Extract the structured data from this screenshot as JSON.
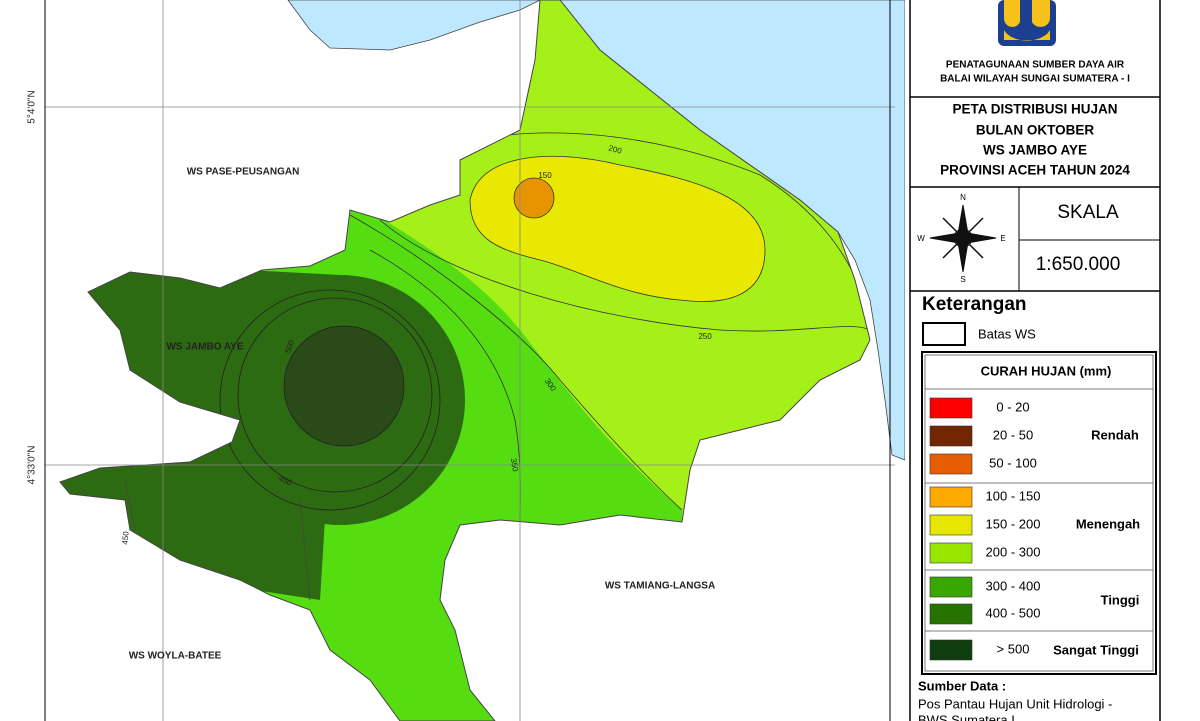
{
  "map": {
    "regions": [
      "WS PASE-PEUSANGAN",
      "WS JAMBO AYE",
      "WS TAMIANG-LANGSA",
      "WS WOYLA-BATEE"
    ],
    "contour_labels": [
      "150",
      "200",
      "250",
      "300",
      "350",
      "500",
      "450",
      "450"
    ],
    "coordinates": [
      "5°4'0\"N",
      "4°33'0\"N"
    ]
  },
  "panel": {
    "organization": [
      "PENATAGUNAAN SUMBER DAYA AIR",
      "BALAI WILAYAH SUNGAI SUMATERA - I"
    ],
    "title": [
      "PETA DISTRIBUSI HUJAN",
      "BULAN OKTOBER",
      "WS JAMBO AYE",
      "PROVINSI ACEH TAHUN 2024"
    ],
    "compass": [
      "N",
      "E",
      "S",
      "W"
    ],
    "scale_heading": "SKALA",
    "scale": "1:650.000",
    "legend_heading": "Keterangan",
    "boundary_label": "Batas WS",
    "rain_heading": "CURAH HUJAN (mm)",
    "classes": [
      {
        "range": "0 - 20",
        "color": "#ff0000"
      },
      {
        "range": "20 - 50",
        "color": "#732600"
      },
      {
        "range": "50 - 100",
        "color": "#e65c00"
      },
      {
        "range": "100 - 150",
        "color": "#ffaa00"
      },
      {
        "range": "150 - 200",
        "color": "#e6e600"
      },
      {
        "range": "200 - 300",
        "color": "#98e600"
      },
      {
        "range": "300 - 400",
        "color": "#38a800"
      },
      {
        "range": "400 - 500",
        "color": "#267300"
      },
      {
        "range": "> 500",
        "color": "#0f3d0f"
      }
    ],
    "groups": [
      "Rendah",
      "Menengah",
      "Tinggi",
      "Sangat Tinggi"
    ],
    "source_heading": "Sumber Data :",
    "source": [
      "Pos Pantau Hujan Unit Hidrologi -",
      "BWS Sumatera I"
    ]
  }
}
